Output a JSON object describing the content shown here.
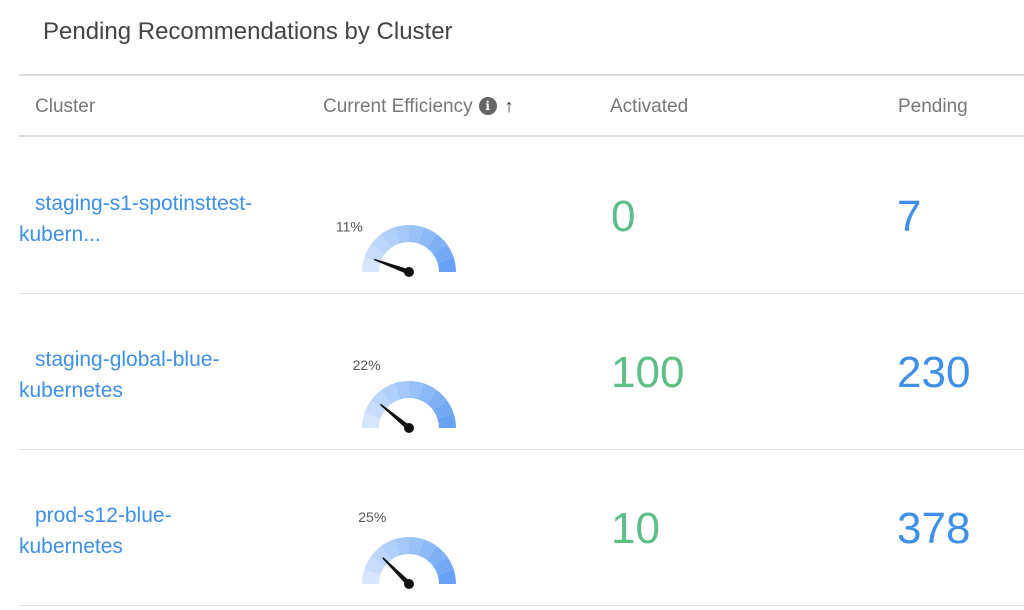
{
  "title": "Pending Recommendations by Cluster",
  "header": {
    "cluster": "Cluster",
    "efficiency": "Current Efficiency",
    "info_icon": "info-icon",
    "sort_icon": "arrow-up-icon",
    "activated": "Activated",
    "pending": "Pending"
  },
  "colors": {
    "link": "#3d8fe8",
    "activated": "#5cbf87",
    "pending": "#3d8fe8"
  },
  "rows": [
    {
      "name_line1": "staging-s1-spotinsttest-",
      "name_line2": "kubern...",
      "efficiency": 11,
      "efficiency_label": "11%",
      "activated": "0",
      "pending": "7"
    },
    {
      "name_line1": "staging-global-blue-",
      "name_line2": "kubernetes",
      "efficiency": 22,
      "efficiency_label": "22%",
      "activated": "100",
      "pending": "230"
    },
    {
      "name_line1": "prod-s12-blue-",
      "name_line2": "kubernetes",
      "efficiency": 25,
      "efficiency_label": "25%",
      "activated": "10",
      "pending": "378"
    }
  ]
}
